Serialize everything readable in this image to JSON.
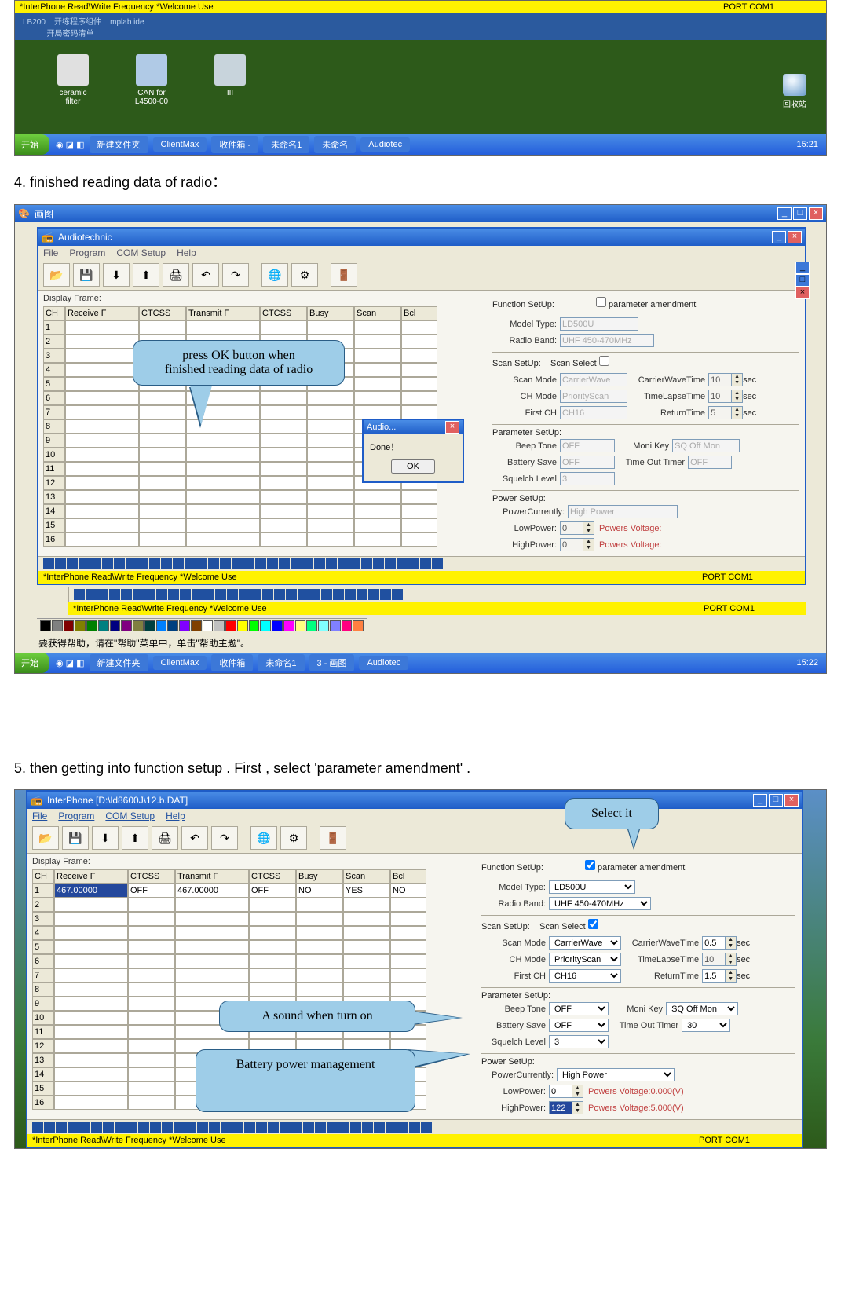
{
  "top": {
    "yellow_text": "*InterPhone Read\\Write Frequency *Welcome Use",
    "port": "PORT COM1",
    "footline": "LB200    开练程序组件    mplab ide\n           开局密码清单",
    "icons": [
      {
        "label": "ceramic\nfilter",
        "color": "#e0e0e0"
      },
      {
        "label": "CAN for\nL4500-00",
        "color": "#b0cae6"
      },
      {
        "label": "III",
        "color": "#c8d4dc"
      }
    ],
    "recycle": "回收站",
    "tb": {
      "start": "开始",
      "items": [
        "新建文件夹",
        "ClientMax",
        "收件箱 -",
        "未命名1",
        "未命名",
        "Audiotec"
      ],
      "clock": "15:21"
    }
  },
  "step4": "4. finished  reading data of radio：",
  "shot2": {
    "outer_title": "画图",
    "app_title": "Audiotechnic",
    "menus": [
      "File",
      "Program",
      "COM Setup",
      "Help"
    ],
    "display_frame": "Display Frame:",
    "cols": [
      "CH",
      "Receive F",
      "CTCSS",
      "Transmit F",
      "CTCSS",
      "Busy",
      "Scan",
      "Bcl"
    ],
    "rownums": [
      "1",
      "2",
      "3",
      "4",
      "5",
      "6",
      "7",
      "8",
      "9",
      "10",
      "11",
      "12",
      "13",
      "14",
      "15",
      "16"
    ],
    "func": "Function SetUp:",
    "param_chk": "parameter amendment",
    "model_l": "Model Type:",
    "model_v": "LD500U",
    "band_l": "Radio Band:",
    "band_v": "UHF 450-470MHz",
    "scan_setup": "Scan SetUp:",
    "scan_select": "Scan Select",
    "scanmode_l": "Scan Mode",
    "scanmode_v": "CarrierWave",
    "cwtime_l": "CarrierWaveTime",
    "cwtime_v": "10",
    "sec": "sec",
    "chmode_l": "CH Mode",
    "chmode_v": "PriorityScan",
    "tlt_l": "TimeLapseTime",
    "tlt_v": "10",
    "firstch_l": "First CH",
    "firstch_v": "CH16",
    "ret_l": "ReturnTime",
    "ret_v": "5",
    "param_setup": "Parameter SetUp:",
    "beep_l": "Beep Tone",
    "beep_v": "OFF",
    "moni_l": "Moni Key",
    "moni_v": "SQ Off Mon",
    "batt_l": "Battery Save",
    "batt_v": "OFF",
    "tot_l": "Time Out Timer",
    "tot_v": "OFF",
    "sq_l": "Squelch Level",
    "sq_v": "3",
    "power_setup": "Power SetUp:",
    "pcur_l": "PowerCurrently:",
    "pcur_v": "High Power",
    "lowp_l": "LowPower:",
    "lowp_v": "0",
    "pv_l": "Powers Voltage:",
    "highp_l": "HighPower:",
    "highp_v": "0",
    "yellow": "*InterPhone Read\\Write Frequency *Welcome Use",
    "port": "PORT COM1",
    "help_hint": "要获得帮助，请在\"帮助\"菜单中，单击\"帮助主题\"。",
    "tb": {
      "start": "开始",
      "items": [
        "新建文件夹",
        "ClientMax",
        "收件箱",
        "未命名1",
        "3 - 画图",
        "Audiotec"
      ],
      "clock": "15:22"
    },
    "dlg": {
      "title": "Audio...",
      "msg": "Done！",
      "ok": "OK"
    },
    "callout": "press OK button when\nfinished reading data of radio"
  },
  "step5": "5. then getting into function setup . First , select 'parameter amendment' .",
  "shot3": {
    "app_title": "InterPhone  [D:\\ld8600J\\12.b.DAT]",
    "menus": [
      "File",
      "Program",
      "COM Setup",
      "Help"
    ],
    "display_frame": "Display Frame:",
    "cols": [
      "CH",
      "Receive F",
      "CTCSS",
      "Transmit F",
      "CTCSS",
      "Busy",
      "Scan",
      "Bcl"
    ],
    "row1": [
      "1",
      "467.00000",
      "OFF",
      "467.00000",
      "OFF",
      "NO",
      "YES",
      "NO"
    ],
    "rownums": [
      "2",
      "3",
      "4",
      "5",
      "6",
      "7",
      "8",
      "9",
      "10",
      "11",
      "12",
      "13",
      "14",
      "15",
      "16"
    ],
    "func": "Function SetUp:",
    "param_chk": "parameter amendment",
    "model_l": "Model Type:",
    "model_v": "LD500U",
    "band_l": "Radio Band:",
    "band_v": "UHF 450-470MHz",
    "scan_setup": "Scan SetUp:",
    "scan_select": "Scan Select",
    "scanmode_l": "Scan Mode",
    "scanmode_v": "CarrierWave",
    "cwtime_l": "CarrierWaveTime",
    "cwtime_v": "0.5",
    "sec": "sec",
    "chmode_l": "CH Mode",
    "chmode_v": "PriorityScan",
    "tlt_l": "TimeLapseTime",
    "tlt_v": "10",
    "firstch_l": "First CH",
    "firstch_v": "CH16",
    "ret_l": "ReturnTime",
    "ret_v": "1.5",
    "param_setup": "Parameter SetUp:",
    "beep_l": "Beep Tone",
    "beep_v": "OFF",
    "moni_l": "Moni Key",
    "moni_v": "SQ Off Mon",
    "batt_l": "Battery Save",
    "batt_v": "OFF",
    "tot_l": "Time Out Timer",
    "tot_v": "30",
    "sq_l": "Squelch Level",
    "sq_v": "3",
    "power_setup": "Power SetUp:",
    "pcur_l": "PowerCurrently:",
    "pcur_v": "High Power",
    "lowp_l": "LowPower:",
    "lowp_v": "0",
    "pv0": "Powers Voltage:0.000(V)",
    "highp_l": "HighPower:",
    "highp_v": "122",
    "pv5": "Powers Voltage:5.000(V)",
    "yellow": "*InterPhone Read\\Write Frequency *Welcome Use",
    "port": "PORT COM1",
    "callout_top": "Select it",
    "callout_beep": "A sound when turn on",
    "callout_batt": "Battery power management"
  },
  "palette": [
    "#000000",
    "#808080",
    "#800000",
    "#808000",
    "#008000",
    "#008080",
    "#000080",
    "#800080",
    "#808040",
    "#004040",
    "#0080ff",
    "#004080",
    "#8000ff",
    "#804000",
    "#ffffff",
    "#c0c0c0",
    "#ff0000",
    "#ffff00",
    "#00ff00",
    "#00ffff",
    "#0000ff",
    "#ff00ff",
    "#ffff80",
    "#00ff80",
    "#80ffff",
    "#8080ff",
    "#ff0080",
    "#ff8040"
  ]
}
